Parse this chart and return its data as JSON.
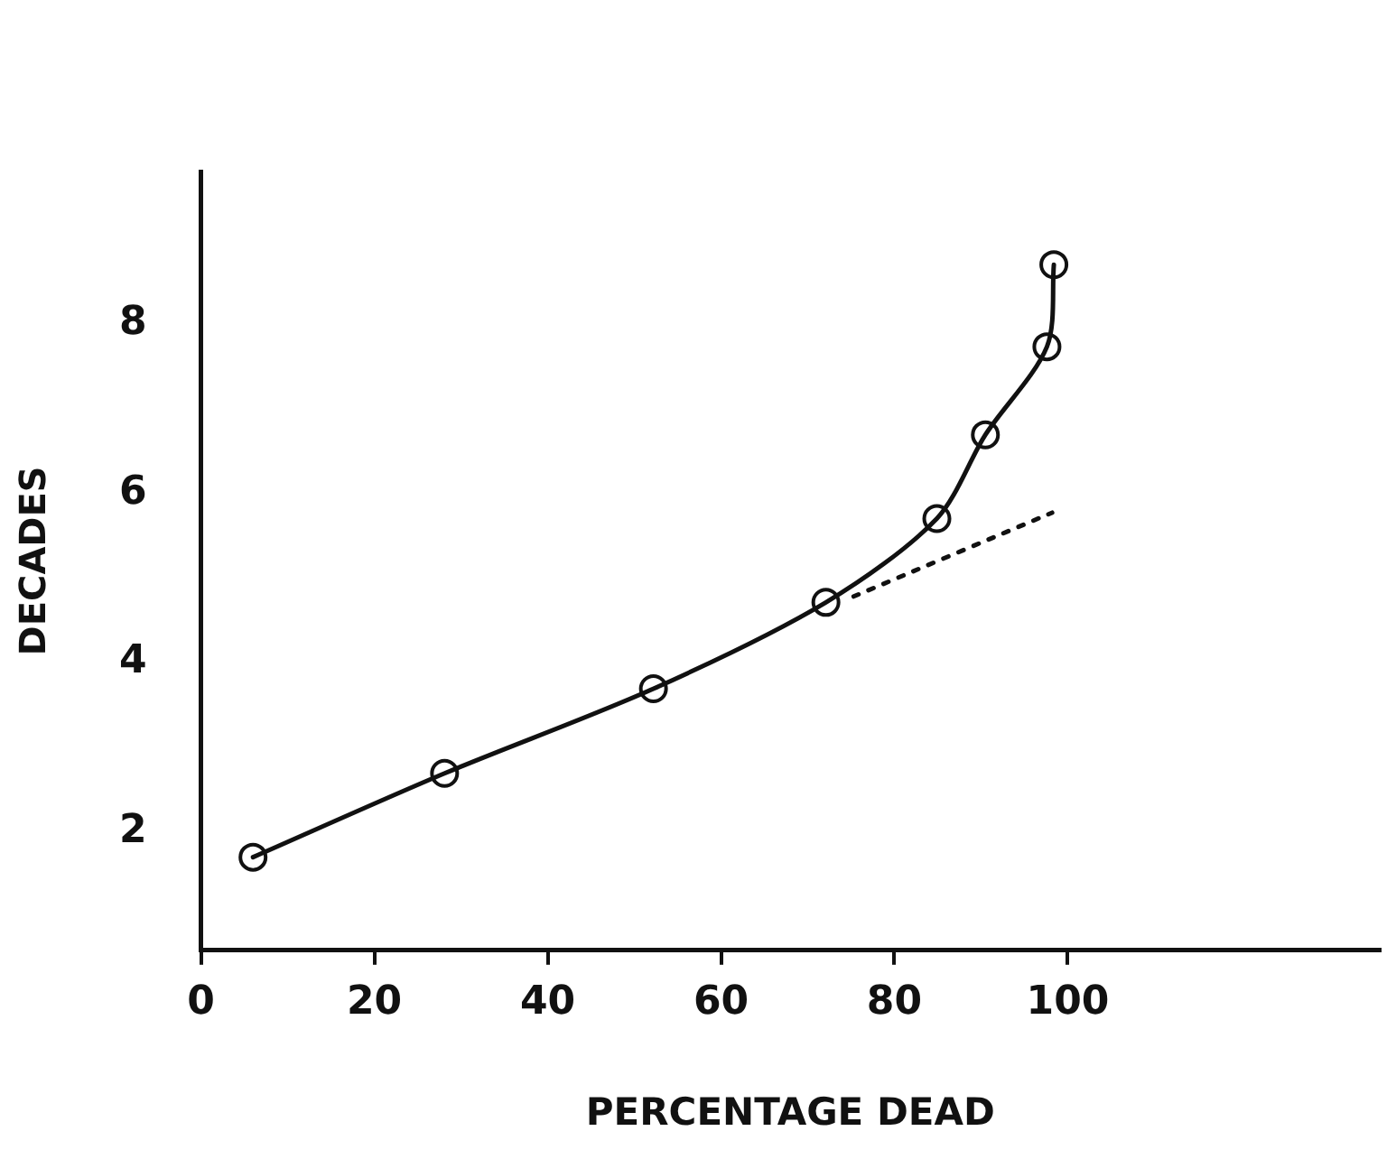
{
  "chart_data": {
    "type": "line",
    "xlabel": "PERCENTAGE DEAD",
    "ylabel": "DECADES",
    "series": [
      {
        "color": "#111111",
        "x": [
          6.0,
          28.1,
          52.2,
          72.1,
          84.9,
          90.5,
          97.6,
          98.4
        ],
        "values": [
          1.7,
          2.69,
          3.69,
          4.71,
          5.7,
          6.69,
          7.73,
          8.7
        ],
        "marker": "circle",
        "line_style": "solid"
      },
      {
        "color": "#111111",
        "x": [
          75.3,
          98.2
        ],
        "values": [
          4.78,
          5.77
        ],
        "marker": "none",
        "line_style": "dotted"
      }
    ],
    "xlim": [
      0,
      136
    ],
    "ylim": [
      0.6,
      9.8
    ],
    "xticks": [
      0,
      20,
      40,
      60,
      80,
      100
    ],
    "yticks": [
      2,
      4,
      6,
      8
    ],
    "grid": false,
    "legend": false
  }
}
